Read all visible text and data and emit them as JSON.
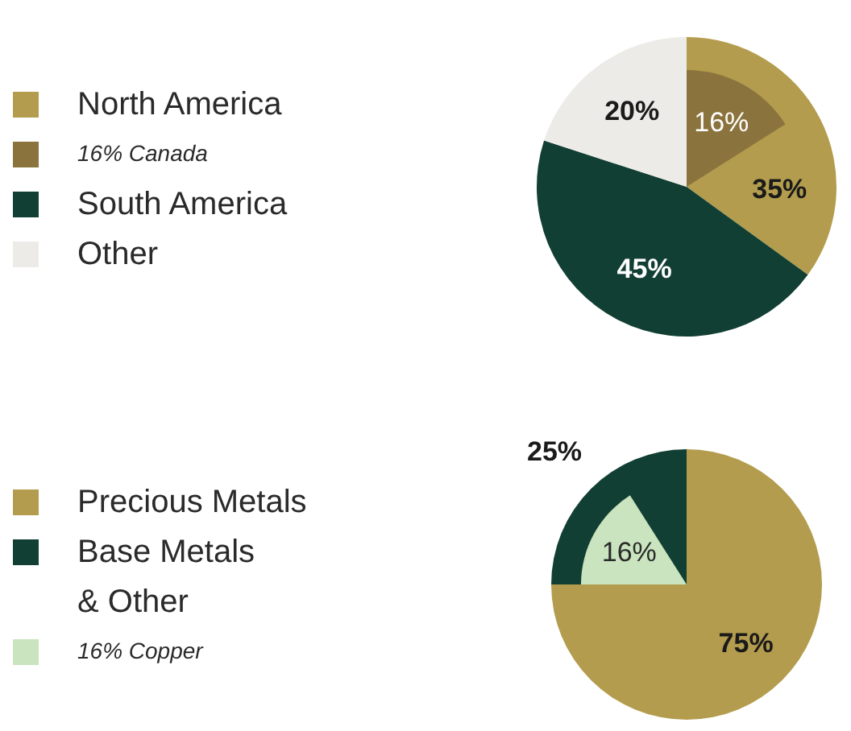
{
  "chart_data": [
    {
      "type": "pie",
      "legend": "left",
      "categories": [
        "North America",
        "South America",
        "Other"
      ],
      "values": [
        35,
        45,
        20
      ],
      "colors": [
        "#b39c4d",
        "#123f33",
        "#edebe7"
      ],
      "value_labels": [
        "35%",
        "45%",
        "20%"
      ],
      "series": [
        {
          "name": "16% Canada",
          "type": "pie",
          "values": [
            16,
            null,
            null
          ],
          "colors": [
            "#8b733e",
            null,
            null
          ],
          "value_labels": [
            "16%",
            null,
            null
          ]
        }
      ]
    },
    {
      "type": "pie",
      "legend": "left",
      "categories": [
        "Precious Metals",
        "Base Metals\n& Other"
      ],
      "values": [
        75,
        25
      ],
      "colors": [
        "#b39c4d",
        "#123f33"
      ],
      "value_labels": [
        "75%",
        "25%"
      ],
      "series": [
        {
          "name": "16% Copper",
          "type": "pie",
          "values": [
            null,
            16
          ],
          "colors": [
            null,
            "#c9e4be"
          ],
          "value_labels": [
            null,
            "16%"
          ]
        }
      ]
    }
  ]
}
